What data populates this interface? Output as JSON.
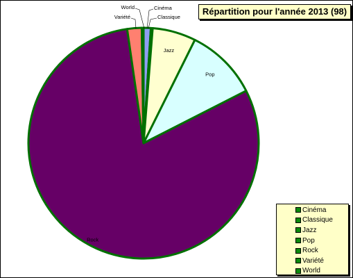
{
  "chart_data": {
    "type": "pie",
    "title": "Répartition pour l'année 2013 (98)",
    "total": 98,
    "slices": [
      {
        "label": "Cinéma",
        "value": 1,
        "color": "#8e9ef2"
      },
      {
        "label": "Classique",
        "value": 0,
        "color": "#800000"
      },
      {
        "label": "Jazz",
        "value": 6,
        "color": "#ffffd0"
      },
      {
        "label": "Pop",
        "value": 10,
        "color": "#d8ffff"
      },
      {
        "label": "Rock",
        "value": 79,
        "color": "#660066"
      },
      {
        "label": "Variété",
        "value": 2,
        "color": "#ff8070"
      },
      {
        "label": "World",
        "value": 0,
        "color": "#000080"
      }
    ],
    "legend": {
      "position": "bottom-right",
      "items": [
        "Cinéma",
        "Classique",
        "Jazz",
        "Pop",
        "Rock",
        "Variété",
        "World"
      ]
    },
    "colors": {
      "slice_border": "#007000",
      "legend_swatch": "#0c8a0c",
      "legend_background": "#ffffc8",
      "title_background": "#ffffc8"
    }
  }
}
